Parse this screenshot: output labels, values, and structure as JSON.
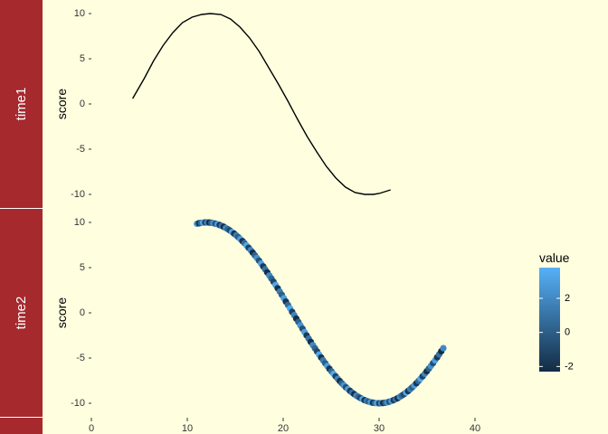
{
  "chart_data": {
    "type": "faceted",
    "strip_color": "#a6292e",
    "background": "#ffffe0",
    "facets": [
      {
        "strip_label": "time1",
        "ylabel": "score",
        "type": "line",
        "line_color": "#000000",
        "ylim": [
          -11.5,
          11.5
        ],
        "y_ticks": [
          10,
          5,
          0,
          -5,
          -10
        ],
        "y_tick_labels": [
          "10",
          "5",
          "0",
          "-5",
          "-10"
        ],
        "x": [
          4.3,
          5.5,
          6.5,
          7.5,
          8.5,
          9.5,
          10.5,
          11.5,
          12.4,
          13.5,
          14.5,
          15.5,
          16.5,
          17.5,
          18.5,
          19.5,
          20.5,
          21.5,
          22.5,
          23.5,
          24.5,
          25.5,
          26.5,
          27.5,
          28.5,
          29.4,
          30.0,
          31.2
        ],
        "y": [
          0.6,
          2.8,
          4.8,
          6.5,
          7.9,
          9.0,
          9.6,
          9.9,
          10.0,
          9.9,
          9.4,
          8.5,
          7.3,
          5.8,
          4.0,
          2.2,
          0.3,
          -1.7,
          -3.6,
          -5.3,
          -6.9,
          -8.2,
          -9.2,
          -9.8,
          -10.0,
          -10.0,
          -9.9,
          -9.5
        ]
      },
      {
        "strip_label": "time2",
        "ylabel": "score",
        "type": "scatter",
        "ylim": [
          -11.5,
          11.5
        ],
        "y_ticks": [
          10,
          5,
          0,
          -5,
          -10
        ],
        "y_tick_labels": [
          "10",
          "5",
          "0",
          "-5",
          "-10"
        ],
        "x_start": 11.0,
        "x_end": 36.7,
        "n_points": 120,
        "y_amplitude": 10,
        "y_peak_x": 12.0,
        "y_period": 36.0,
        "value_pattern": [
          2.9,
          -1.8,
          0.6,
          3.4,
          -1.2,
          1.8,
          -2.1,
          0.2,
          2.4,
          -0.6,
          3.0,
          -1.6,
          1.0,
          -2.2,
          2.0,
          0.4,
          -1.0,
          3.3,
          -1.9,
          1.4,
          0.0
        ]
      }
    ],
    "xlim": [
      0,
      45
    ],
    "x_ticks": [
      0,
      10,
      20,
      30,
      40
    ],
    "x_tick_labels": [
      "0",
      "10",
      "20",
      "30",
      "40"
    ],
    "legend": {
      "title": "value",
      "placement": "right",
      "range": [
        -2.3,
        3.8
      ],
      "ticks": [
        2,
        0,
        -2
      ],
      "tick_labels": [
        "2",
        "0",
        "-2"
      ],
      "color_low": "#132b43",
      "color_high": "#56b1f7"
    }
  }
}
